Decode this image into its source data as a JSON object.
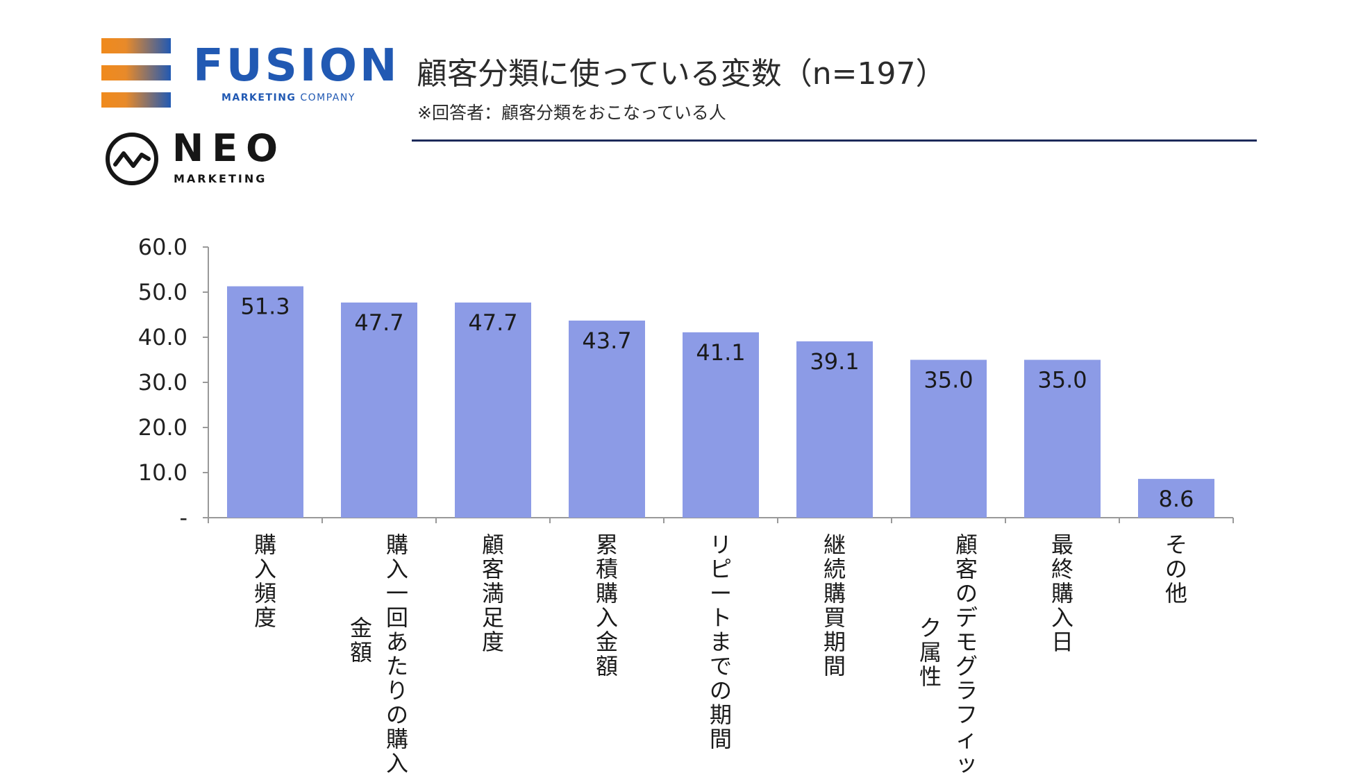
{
  "logos": {
    "fusion": {
      "name": "FUSION",
      "tagline_bold": "MARKETING",
      "tagline_rest": "COMPANY"
    },
    "neo": {
      "name": "NEO",
      "tagline": "MARKETING"
    }
  },
  "header": {
    "title": "顧客分類に使っている変数（n=197）",
    "subtitle": "※回答者：顧客分類をおこなっている人"
  },
  "colors": {
    "bar": "#8c9be6",
    "axis": "#999999",
    "rule": "#1d2a5a",
    "brand_blue": "#2159b3",
    "brand_orange": "#f08a1c"
  },
  "chart_data": {
    "type": "bar",
    "categories": [
      "購入頻度",
      "購入一回あたりの購入金額",
      "顧客満足度",
      "累積購入金額",
      "リピートまでの期間",
      "継続購買期間",
      "顧客のデモグラフィック属性",
      "最終購入日",
      "その他"
    ],
    "category_lines": [
      [
        "購入頻度"
      ],
      [
        "購入一回あたりの購入",
        "金額"
      ],
      [
        "顧客満足度"
      ],
      [
        "累積購入金額"
      ],
      [
        "リピートまでの期間"
      ],
      [
        "継続購買期間"
      ],
      [
        "顧客のデモグラフィッ",
        "ク属性"
      ],
      [
        "最終購入日"
      ],
      [
        "その他"
      ]
    ],
    "values": [
      51.3,
      47.7,
      47.7,
      43.7,
      41.1,
      39.1,
      35.0,
      35.0,
      8.6
    ],
    "value_labels": [
      "51.3",
      "47.7",
      "47.7",
      "43.7",
      "41.1",
      "39.1",
      "35.0",
      "35.0",
      "8.6"
    ],
    "ylim": [
      0,
      60
    ],
    "yticks": [
      "-",
      "10.0",
      "20.0",
      "30.0",
      "40.0",
      "50.0",
      "60.0"
    ],
    "title": "",
    "xlabel": "",
    "ylabel": ""
  }
}
